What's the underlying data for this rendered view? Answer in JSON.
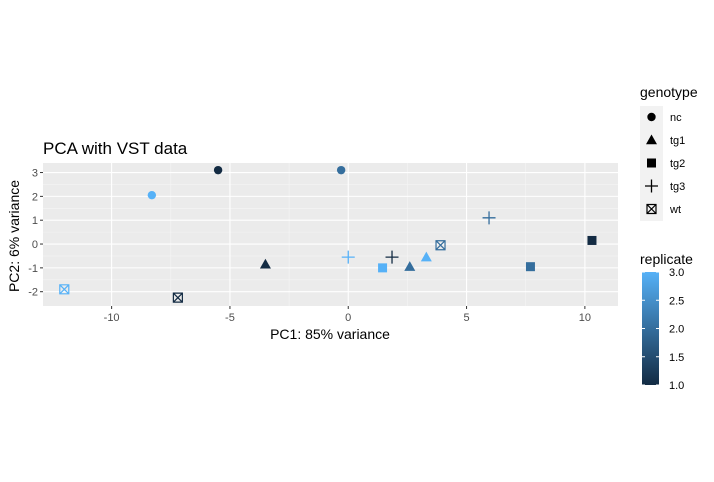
{
  "chart_data": {
    "type": "scatter",
    "title": "PCA with VST data",
    "xlabel": "PC1: 85% variance",
    "ylabel": "PC2: 6% variance",
    "xlim": [
      -12.9,
      11.4
    ],
    "ylim": [
      -2.6,
      3.4
    ],
    "x_ticks": [
      -10,
      -5,
      0,
      5,
      10
    ],
    "y_ticks": [
      -2,
      -1,
      0,
      1,
      2,
      3
    ],
    "x_tick_labels": [
      "-10",
      "-5",
      "0",
      "5",
      "10"
    ],
    "y_tick_labels": [
      "-2",
      "-1",
      "0",
      "1",
      "2",
      "3"
    ],
    "grid": true,
    "legend_position": "right",
    "shape_legend": {
      "title": "genotype",
      "entries": [
        {
          "label": "nc",
          "shape": "circle"
        },
        {
          "label": "tg1",
          "shape": "triangle"
        },
        {
          "label": "tg2",
          "shape": "square"
        },
        {
          "label": "tg3",
          "shape": "plus"
        },
        {
          "label": "wt",
          "shape": "boxed-x"
        }
      ]
    },
    "color_legend": {
      "title": "replicate",
      "min": 1.0,
      "max": 3.0,
      "ticks": [
        "1.0",
        "1.5",
        "2.0",
        "2.5",
        "3.0"
      ],
      "low_color": "#132B43",
      "high_color": "#56B1F7"
    },
    "points": [
      {
        "x": -5.5,
        "y": 3.1,
        "genotype": "nc",
        "replicate": 1
      },
      {
        "x": -0.3,
        "y": 3.1,
        "genotype": "nc",
        "replicate": 2
      },
      {
        "x": -8.3,
        "y": 2.05,
        "genotype": "nc",
        "replicate": 3
      },
      {
        "x": -3.5,
        "y": -0.85,
        "genotype": "tg1",
        "replicate": 1
      },
      {
        "x": 2.6,
        "y": -0.95,
        "genotype": "tg1",
        "replicate": 2
      },
      {
        "x": 3.3,
        "y": -0.55,
        "genotype": "tg1",
        "replicate": 3
      },
      {
        "x": 10.3,
        "y": 0.15,
        "genotype": "tg2",
        "replicate": 1
      },
      {
        "x": 7.7,
        "y": -0.95,
        "genotype": "tg2",
        "replicate": 2
      },
      {
        "x": 1.45,
        "y": -1.0,
        "genotype": "tg2",
        "replicate": 3
      },
      {
        "x": 1.85,
        "y": -0.55,
        "genotype": "tg3",
        "replicate": 1
      },
      {
        "x": 5.95,
        "y": 1.1,
        "genotype": "tg3",
        "replicate": 2
      },
      {
        "x": 0.0,
        "y": -0.55,
        "genotype": "tg3",
        "replicate": 3
      },
      {
        "x": -7.2,
        "y": -2.25,
        "genotype": "wt",
        "replicate": 1
      },
      {
        "x": 3.9,
        "y": -0.05,
        "genotype": "wt",
        "replicate": 2
      },
      {
        "x": -12.0,
        "y": -1.9,
        "genotype": "wt",
        "replicate": 3
      }
    ]
  }
}
